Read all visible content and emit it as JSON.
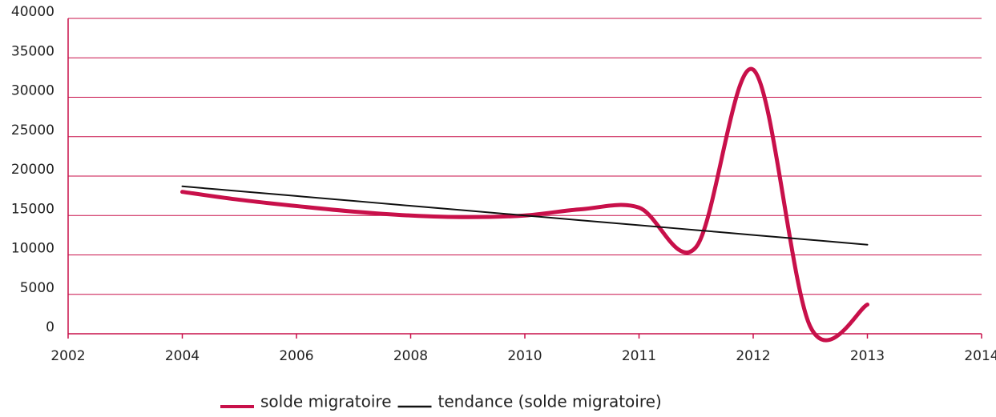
{
  "chart_data": {
    "type": "line",
    "smooth": true,
    "categories": [
      "2002",
      null,
      "2004",
      null,
      "2006",
      null,
      "2008",
      null,
      "2010",
      null,
      "2011",
      null,
      "2012",
      null,
      "2013",
      null,
      "2014"
    ],
    "series": [
      {
        "name": "solde migratoire",
        "color": "#c8104a",
        "width": 5,
        "values": [
          null,
          null,
          18000,
          17000,
          16200,
          15500,
          15000,
          14800,
          15000,
          15800,
          16000,
          11000,
          33500,
          900,
          3700,
          null,
          null
        ]
      },
      {
        "name": "tendance (solde migratoire)",
        "color": "#111111",
        "width": 2,
        "values": [
          null,
          null,
          18700,
          18080,
          17470,
          16850,
          16230,
          15620,
          15000,
          14380,
          13770,
          13150,
          12530,
          11920,
          11300,
          null,
          null
        ]
      }
    ],
    "ylim": [
      0,
      40000
    ],
    "yticks": [
      0,
      5000,
      10000,
      15000,
      20000,
      25000,
      30000,
      35000,
      40000
    ],
    "grid": true,
    "grid_color": "#c8104a",
    "axis_color": "#c8104a",
    "legend": "bottom"
  }
}
